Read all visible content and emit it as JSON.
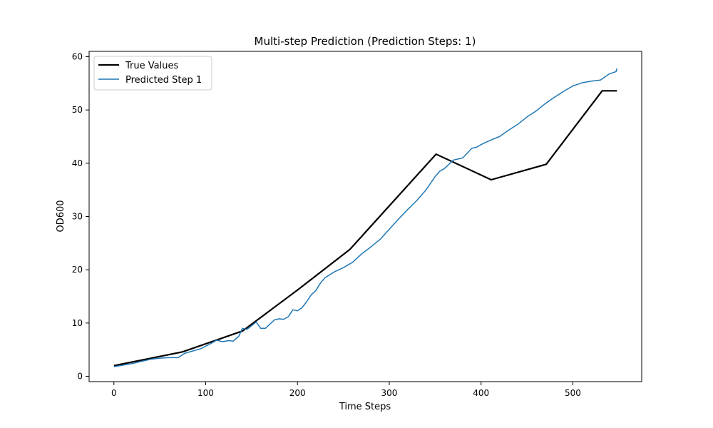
{
  "chart_data": {
    "type": "line",
    "title": "Multi-step Prediction (Prediction Steps: 1)",
    "xlabel": "Time Steps",
    "ylabel": "OD600",
    "xlim": [
      -27,
      575
    ],
    "ylim": [
      -1,
      61
    ],
    "xticks": [
      0,
      100,
      200,
      300,
      400,
      500
    ],
    "yticks": [
      0,
      10,
      20,
      30,
      40,
      50,
      60
    ],
    "grid": false,
    "legend_position": "top-left",
    "series": [
      {
        "name": "True Values",
        "color": "#000000",
        "x": [
          0,
          75,
          140,
          200,
          257,
          351,
          411,
          471,
          532,
          548
        ],
        "y": [
          2.0,
          4.6,
          8.5,
          16.2,
          23.8,
          41.7,
          36.9,
          39.8,
          53.6,
          53.6
        ]
      },
      {
        "name": "Predicted Step 1",
        "color": "#1f77b4",
        "x": [
          0,
          10,
          20,
          30,
          40,
          50,
          60,
          70,
          77,
          85,
          95,
          105,
          112,
          118,
          125,
          130,
          136,
          140,
          145,
          150,
          155,
          160,
          165,
          170,
          175,
          180,
          185,
          190,
          195,
          200,
          205,
          210,
          215,
          220,
          225,
          230,
          240,
          250,
          260,
          270,
          280,
          290,
          300,
          310,
          320,
          330,
          340,
          350,
          355,
          360,
          370,
          380,
          390,
          395,
          400,
          410,
          420,
          430,
          440,
          450,
          460,
          470,
          480,
          490,
          500,
          510,
          520,
          530,
          540,
          547,
          548
        ],
        "y": [
          1.8,
          2.1,
          2.4,
          2.8,
          3.2,
          3.4,
          3.5,
          3.5,
          4.3,
          4.7,
          5.2,
          6.1,
          6.8,
          6.5,
          6.7,
          6.6,
          7.5,
          9.0,
          8.8,
          9.5,
          10.2,
          9.0,
          9.0,
          9.8,
          10.6,
          10.8,
          10.7,
          11.2,
          12.5,
          12.3,
          12.9,
          14.0,
          15.3,
          16.1,
          17.5,
          18.5,
          19.6,
          20.4,
          21.4,
          23.0,
          24.3,
          25.7,
          27.6,
          29.5,
          31.3,
          33.0,
          35.0,
          37.5,
          38.5,
          39.0,
          40.6,
          41.0,
          42.8,
          43.0,
          43.5,
          44.3,
          45.0,
          46.2,
          47.3,
          48.7,
          49.8,
          51.2,
          52.4,
          53.5,
          54.5,
          55.1,
          55.4,
          55.6,
          56.8,
          57.2,
          57.8
        ]
      }
    ]
  }
}
